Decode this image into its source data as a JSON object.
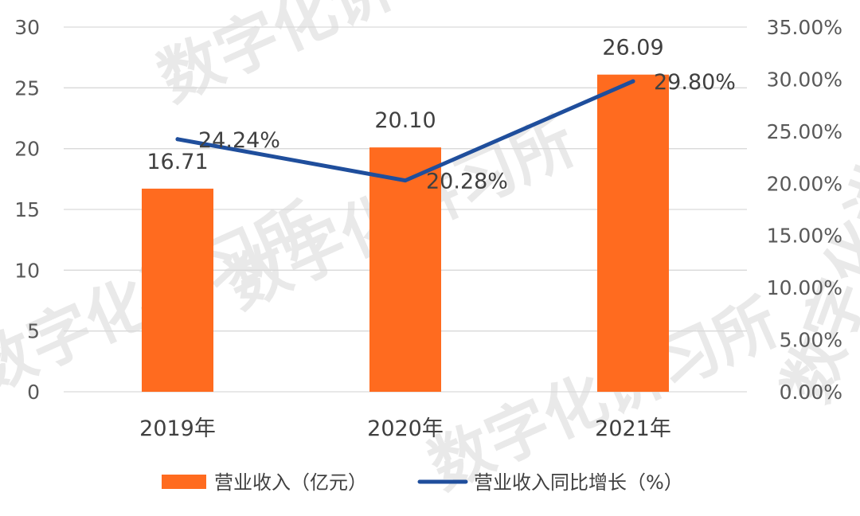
{
  "chart_data": {
    "type": "bar+line",
    "categories": [
      "2019年",
      "2020年",
      "2021年"
    ],
    "series": [
      {
        "name": "营业收入（亿元）",
        "type": "bar",
        "axis": "left",
        "values": [
          16.71,
          20.1,
          26.09
        ],
        "labels": [
          "16.71",
          "20.10",
          "26.09"
        ]
      },
      {
        "name": "营业收入同比增长（%）",
        "type": "line",
        "axis": "right",
        "values": [
          24.24,
          20.28,
          29.8
        ],
        "labels": [
          "24.24%",
          "20.28%",
          "29.80%"
        ]
      }
    ],
    "y_left": {
      "ylim": [
        0,
        30
      ],
      "ticks": [
        "0",
        "5",
        "10",
        "15",
        "20",
        "25",
        "30"
      ]
    },
    "y_right": {
      "ylim": [
        0,
        35
      ],
      "ticks": [
        "0.00%",
        "5.00%",
        "10.00%",
        "15.00%",
        "20.00%",
        "25.00%",
        "30.00%",
        "35.00%"
      ]
    },
    "grid": true,
    "legend_position": "bottom",
    "colors": {
      "bar": "#ff6b1f",
      "line": "#1f4e9c",
      "grid": "#d9d9d9"
    }
  },
  "watermark": "数字化讲习所"
}
